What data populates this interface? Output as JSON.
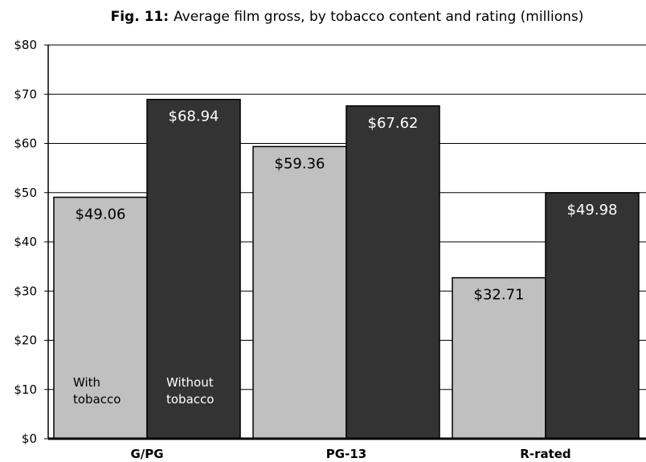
{
  "chart_data": {
    "type": "bar",
    "title_prefix": "Fig. 11:",
    "title": "Average film gross, by tobacco content and rating (millions)",
    "categories": [
      "G/PG",
      "PG-13",
      "R-rated"
    ],
    "series": [
      {
        "name": "With tobacco",
        "name_lines": [
          "With",
          "tobacco"
        ],
        "values": [
          49.06,
          59.36,
          32.71
        ],
        "labels": [
          "$49.06",
          "$59.36",
          "$32.71"
        ],
        "color": "#c0c0c0",
        "label_color": "#000000"
      },
      {
        "name": "Without tobacco",
        "name_lines": [
          "Without",
          "tobacco"
        ],
        "values": [
          68.94,
          67.62,
          49.98
        ],
        "labels": [
          "$68.94",
          "$67.62",
          "$49.98"
        ],
        "color": "#333333",
        "label_color": "#ffffff"
      }
    ],
    "y_ticks": [
      "$0",
      "$10",
      "$20",
      "$30",
      "$40",
      "$50",
      "$60",
      "$70",
      "$80"
    ],
    "ylim": [
      0,
      80
    ],
    "grid": true,
    "legend": "inside first category bars"
  }
}
